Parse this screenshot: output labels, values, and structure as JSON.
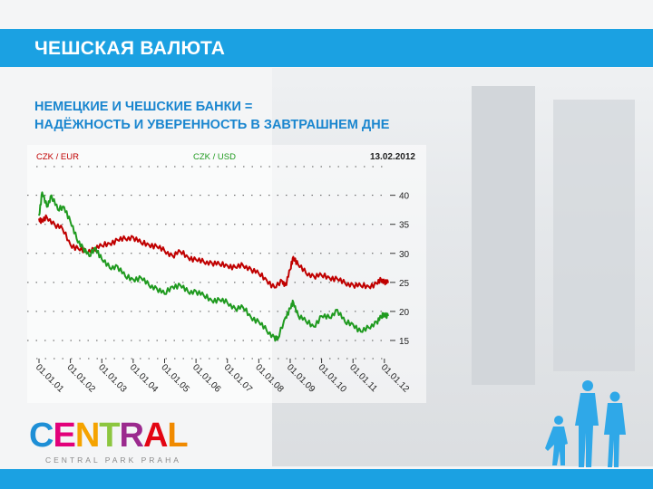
{
  "slide": {
    "title": "ЧЕШСКАЯ ВАЛЮТА",
    "subtitle_line1": "НЕМЕЦКИЕ И ЧЕШСКИЕ БАНКИ =",
    "subtitle_line2": "НАДЁЖНОСТЬ И УВЕРЕННОСТЬ В ЗАВТРАШНЕМ ДНЕ"
  },
  "logo": {
    "letters": [
      "C",
      "E",
      "N",
      "T",
      "R",
      "A",
      "L"
    ],
    "letter_colors": [
      "#1e8fd6",
      "#e2007a",
      "#f5a300",
      "#8cc63f",
      "#9b2a8e",
      "#e30613",
      "#f08a00"
    ],
    "subtext": "CENTRAL PARK PRAHA"
  },
  "colors": {
    "header_bg": "#1ba1e2",
    "subtitle": "#1a86cf",
    "czk_eur": "#c00000",
    "czk_usd": "#1f9a1f",
    "people": "#2fa8e8"
  },
  "chart_data": {
    "type": "line",
    "date_label": "13.02.2012",
    "x_ticks": [
      "01.01.01",
      "01.01.02",
      "01.01.03",
      "01.01.04",
      "01.01.05",
      "01.01.06",
      "01.01.07",
      "01.01.08",
      "01.01.09",
      "01.01.10",
      "01.01.11",
      "01.01.12"
    ],
    "y_ticks": [
      40,
      35,
      30,
      25,
      20,
      15
    ],
    "ylim": [
      12.5,
      44
    ],
    "xlim": [
      2001.0,
      2012.12
    ],
    "grid": true,
    "series": [
      {
        "name": "CZK / EUR",
        "x": [
          2001.0,
          2001.1,
          2001.25,
          2001.5,
          2001.75,
          2002.0,
          2002.25,
          2002.5,
          2002.75,
          2003.0,
          2003.25,
          2003.5,
          2003.75,
          2004.0,
          2004.25,
          2004.5,
          2004.75,
          2005.0,
          2005.25,
          2005.5,
          2005.75,
          2006.0,
          2006.25,
          2006.5,
          2006.75,
          2007.0,
          2007.25,
          2007.5,
          2007.75,
          2008.0,
          2008.25,
          2008.5,
          2008.75,
          2008.85,
          2009.0,
          2009.1,
          2009.25,
          2009.5,
          2009.75,
          2010.0,
          2010.25,
          2010.5,
          2010.75,
          2011.0,
          2011.25,
          2011.5,
          2011.75,
          2011.9,
          2012.0,
          2012.12
        ],
        "y": [
          36.0,
          35.5,
          36.2,
          35.0,
          34.2,
          31.5,
          30.8,
          30.2,
          30.8,
          31.3,
          31.7,
          32.3,
          32.5,
          32.8,
          31.8,
          31.5,
          31.2,
          30.4,
          29.6,
          30.3,
          29.3,
          28.9,
          28.5,
          28.4,
          28.1,
          27.9,
          27.6,
          27.9,
          27.3,
          26.5,
          25.4,
          24.1,
          25.2,
          24.5,
          27.2,
          29.4,
          28.1,
          26.6,
          26.1,
          26.2,
          25.8,
          25.6,
          24.8,
          24.6,
          24.4,
          24.3,
          24.8,
          25.4,
          25.2,
          24.9
        ]
      },
      {
        "name": "CZK / USD",
        "x": [
          2001.0,
          2001.1,
          2001.25,
          2001.4,
          2001.6,
          2001.8,
          2002.0,
          2002.2,
          2002.4,
          2002.6,
          2002.8,
          2003.0,
          2003.25,
          2003.5,
          2003.75,
          2004.0,
          2004.25,
          2004.5,
          2004.75,
          2005.0,
          2005.25,
          2005.5,
          2005.75,
          2006.0,
          2006.25,
          2006.5,
          2006.75,
          2007.0,
          2007.25,
          2007.5,
          2007.75,
          2008.0,
          2008.25,
          2008.5,
          2008.6,
          2008.85,
          2009.0,
          2009.1,
          2009.25,
          2009.5,
          2009.75,
          2010.0,
          2010.25,
          2010.5,
          2010.75,
          2011.0,
          2011.25,
          2011.5,
          2011.75,
          2011.9,
          2012.0,
          2012.12
        ],
        "y": [
          36.5,
          40.5,
          38.0,
          40.0,
          37.5,
          38.0,
          35.5,
          32.5,
          31.0,
          29.5,
          31.0,
          29.0,
          27.5,
          27.8,
          26.0,
          25.5,
          25.8,
          24.5,
          24.0,
          23.0,
          24.3,
          24.5,
          23.3,
          23.5,
          22.7,
          21.9,
          22.0,
          21.5,
          20.5,
          20.7,
          19.0,
          18.2,
          16.7,
          15.5,
          15.2,
          19.0,
          20.5,
          21.6,
          19.4,
          18.3,
          17.4,
          19.2,
          18.9,
          20.3,
          18.1,
          17.8,
          16.5,
          17.2,
          18.2,
          19.0,
          19.6,
          19.2
        ]
      }
    ]
  }
}
